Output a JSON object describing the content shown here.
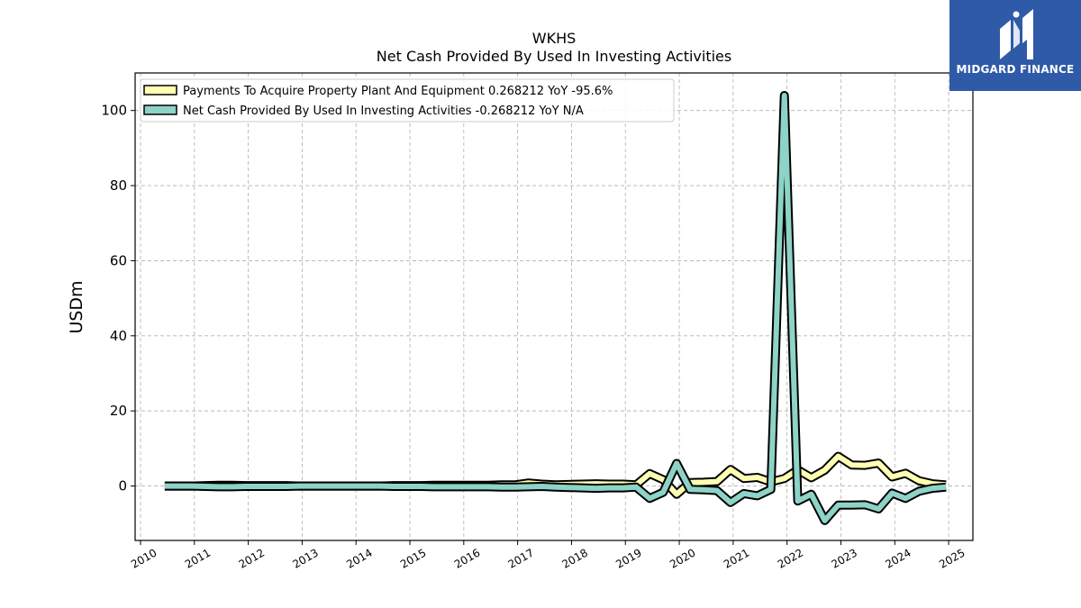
{
  "chart_data": {
    "type": "line",
    "title": "WKHS",
    "subtitle": "Net Cash Provided By Used In Investing Activities",
    "ylabel": "USDm",
    "xlabel": "",
    "xlim": [
      2009.9,
      2025.45
    ],
    "ylim": [
      -14.5,
      110
    ],
    "x_ticks": [
      2010,
      2011,
      2012,
      2013,
      2014,
      2015,
      2016,
      2017,
      2018,
      2019,
      2020,
      2021,
      2022,
      2023,
      2024,
      2025
    ],
    "y_ticks": [
      0,
      20,
      40,
      60,
      80,
      100
    ],
    "grid": true,
    "legend_position": "top-left",
    "series": [
      {
        "name": "Payments To Acquire Property Plant And Equipment  0.268212 YoY -95.6%",
        "color": "#ffffb3",
        "x": [
          2010.45,
          2010.7,
          2010.95,
          2011.2,
          2011.45,
          2011.7,
          2011.95,
          2012.2,
          2012.45,
          2012.7,
          2012.95,
          2013.2,
          2013.45,
          2013.7,
          2013.95,
          2014.2,
          2014.45,
          2014.7,
          2014.95,
          2015.2,
          2015.45,
          2015.7,
          2015.95,
          2016.2,
          2016.45,
          2016.7,
          2016.95,
          2017.2,
          2017.45,
          2017.7,
          2017.95,
          2018.2,
          2018.45,
          2018.7,
          2018.95,
          2019.2,
          2019.45,
          2019.7,
          2019.95,
          2020.2,
          2020.45,
          2020.7,
          2020.95,
          2021.2,
          2021.45,
          2021.7,
          2021.95,
          2022.2,
          2022.45,
          2022.7,
          2022.95,
          2023.2,
          2023.45,
          2023.7,
          2023.95,
          2024.2,
          2024.45,
          2024.7,
          2024.95
        ],
        "values": [
          0,
          0,
          0,
          0.1,
          0.2,
          0.2,
          0.1,
          0.1,
          0.1,
          0.1,
          0,
          0,
          0,
          0,
          0,
          0,
          0,
          0.1,
          0.1,
          0.1,
          0.2,
          0.2,
          0.2,
          0.2,
          0.2,
          0.3,
          0.3,
          0.8,
          0.5,
          0.3,
          0.4,
          0.5,
          0.6,
          0.5,
          0.5,
          0.3,
          3.3,
          1.7,
          -2.2,
          0.9,
          1.0,
          1.2,
          4.4,
          2.0,
          2.3,
          1.1,
          2.0,
          4.3,
          2.2,
          4.2,
          7.9,
          5.6,
          5.5,
          6.1,
          2.4,
          3.4,
          1.4,
          0.6,
          0.3
        ]
      },
      {
        "name": "Net Cash Provided By Used In Investing Activities  -0.268212 YoY N/A",
        "color": "#8dd3c7",
        "x": [
          2010.45,
          2010.7,
          2010.95,
          2011.2,
          2011.45,
          2011.7,
          2011.95,
          2012.2,
          2012.45,
          2012.7,
          2012.95,
          2013.2,
          2013.45,
          2013.7,
          2013.95,
          2014.2,
          2014.45,
          2014.7,
          2014.95,
          2015.2,
          2015.45,
          2015.7,
          2015.95,
          2016.2,
          2016.45,
          2016.7,
          2016.95,
          2017.2,
          2017.45,
          2017.7,
          2017.95,
          2018.2,
          2018.45,
          2018.7,
          2018.95,
          2019.2,
          2019.45,
          2019.7,
          2019.95,
          2020.2,
          2020.45,
          2020.7,
          2020.95,
          2021.2,
          2021.45,
          2021.7,
          2021.95,
          2022.2,
          2022.45,
          2022.7,
          2022.95,
          2023.2,
          2023.45,
          2023.7,
          2023.95,
          2024.2,
          2024.45,
          2024.7,
          2024.95
        ],
        "values": [
          0,
          0,
          0,
          -0.1,
          -0.2,
          -0.2,
          -0.1,
          -0.1,
          -0.1,
          -0.1,
          0,
          0,
          0,
          0,
          0,
          0,
          0,
          -0.1,
          -0.1,
          -0.1,
          -0.2,
          -0.2,
          -0.2,
          -0.2,
          -0.2,
          -0.3,
          -0.3,
          -0.2,
          -0.1,
          -0.3,
          -0.4,
          -0.5,
          -0.6,
          -0.5,
          -0.5,
          -0.3,
          -3.3,
          -1.7,
          6.0,
          -0.9,
          -1.0,
          -1.2,
          -4.4,
          -2.0,
          -2.6,
          -0.9,
          104,
          -4.0,
          -2.2,
          -9.2,
          -5.1,
          -5.1,
          -5.0,
          -6.1,
          -1.9,
          -3.3,
          -1.4,
          -0.6,
          -0.3
        ]
      }
    ]
  },
  "logo": {
    "text": "MIDGARD FINANCE",
    "color": "#2f5aa8"
  }
}
